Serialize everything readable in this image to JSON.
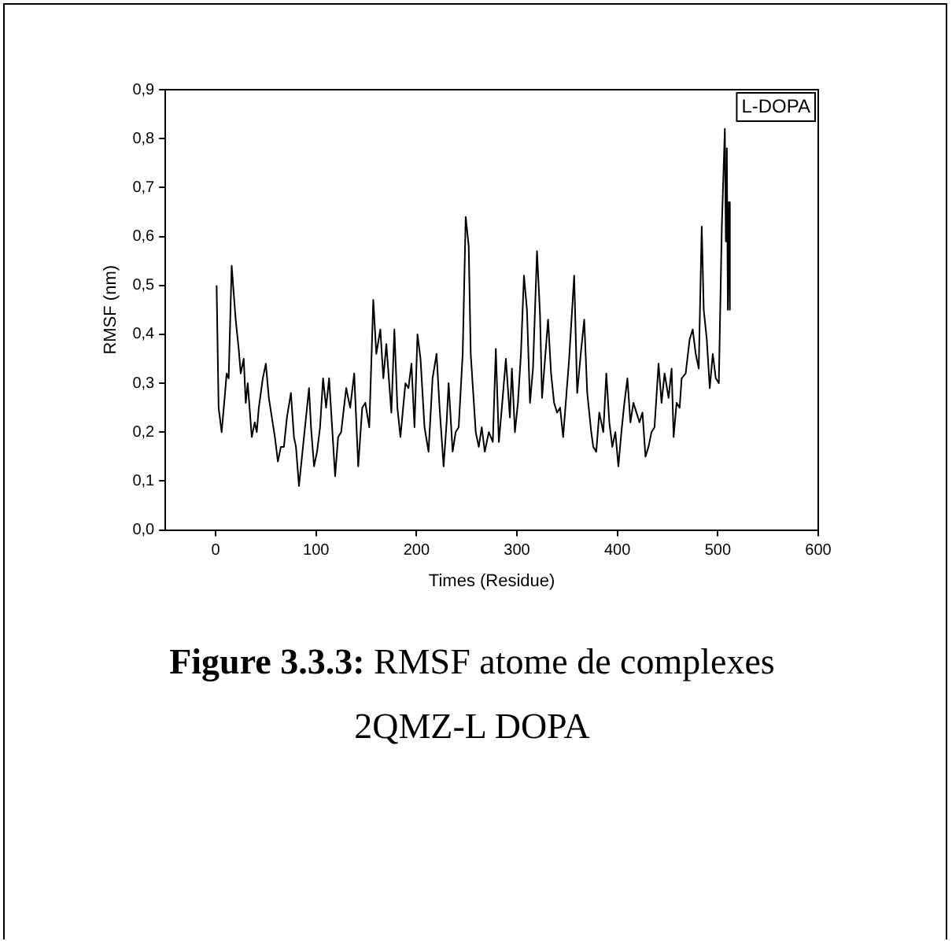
{
  "chart_data": {
    "type": "line",
    "xlabel": "Times (Residue)",
    "ylabel": "RMSF (nm)",
    "xlim": [
      -50,
      600
    ],
    "xticks": [
      0,
      100,
      200,
      300,
      400,
      500,
      600
    ],
    "ylim": [
      0,
      0.9
    ],
    "yticks": [
      {
        "value": 0,
        "label": "0,0"
      },
      {
        "value": 0.1,
        "label": "0,1"
      },
      {
        "value": 0.2,
        "label": "0,2"
      },
      {
        "value": 0.3,
        "label": "0,3"
      },
      {
        "value": 0.4,
        "label": "0,4"
      },
      {
        "value": 0.5,
        "label": "0,5"
      },
      {
        "value": 0.6,
        "label": "0,6"
      },
      {
        "value": 0.7,
        "label": "0,7"
      },
      {
        "value": 0.8,
        "label": "0,8"
      },
      {
        "value": 0.9,
        "label": "0,9"
      }
    ],
    "grid": false,
    "legend": "top right",
    "marker": "none",
    "line_style": "solid",
    "series": [
      {
        "name": "L-DOPA",
        "color": "#000000",
        "x": [
          1,
          3,
          6,
          9,
          11,
          13,
          16,
          20,
          23,
          25,
          28,
          30,
          32,
          36,
          39,
          41,
          43,
          47,
          50,
          53,
          56,
          59,
          62,
          65,
          68,
          71,
          75,
          78,
          80,
          83,
          87,
          90,
          93,
          95,
          98,
          101,
          104,
          107,
          110,
          113,
          116,
          119,
          122,
          125,
          130,
          134,
          138,
          142,
          146,
          149,
          153,
          157,
          160,
          164,
          167,
          170,
          175,
          178,
          181,
          184,
          189,
          192,
          195,
          198,
          201,
          204,
          208,
          212,
          216,
          220,
          223,
          227,
          230,
          232,
          236,
          239,
          242,
          246,
          249,
          252,
          254,
          259,
          262,
          265,
          268,
          272,
          276,
          279,
          282,
          285,
          289,
          293,
          295,
          298,
          301,
          304,
          307,
          310,
          313,
          316,
          320,
          323,
          325,
          328,
          331,
          334,
          337,
          340,
          343,
          346,
          349,
          352,
          357,
          360,
          364,
          367,
          370,
          374,
          376,
          379,
          382,
          386,
          389,
          392,
          395,
          398,
          401,
          404,
          407,
          410,
          413,
          416,
          419,
          422,
          425,
          428,
          431,
          434,
          437,
          441,
          444,
          447,
          451,
          454,
          456,
          459,
          462,
          464,
          468,
          472,
          475,
          478,
          481,
          484,
          486,
          489,
          492,
          495,
          498,
          501,
          504,
          507,
          508,
          509,
          510,
          511,
          512
        ],
        "values": [
          0.5,
          0.25,
          0.2,
          0.27,
          0.32,
          0.31,
          0.54,
          0.43,
          0.37,
          0.32,
          0.35,
          0.26,
          0.3,
          0.19,
          0.22,
          0.2,
          0.25,
          0.31,
          0.34,
          0.27,
          0.23,
          0.19,
          0.14,
          0.17,
          0.17,
          0.23,
          0.28,
          0.19,
          0.17,
          0.09,
          0.17,
          0.23,
          0.29,
          0.21,
          0.13,
          0.16,
          0.21,
          0.31,
          0.25,
          0.31,
          0.21,
          0.11,
          0.19,
          0.2,
          0.29,
          0.25,
          0.32,
          0.13,
          0.25,
          0.26,
          0.21,
          0.47,
          0.36,
          0.41,
          0.31,
          0.38,
          0.24,
          0.41,
          0.25,
          0.19,
          0.3,
          0.29,
          0.34,
          0.21,
          0.4,
          0.35,
          0.21,
          0.16,
          0.31,
          0.36,
          0.25,
          0.13,
          0.22,
          0.3,
          0.16,
          0.2,
          0.21,
          0.36,
          0.64,
          0.58,
          0.36,
          0.2,
          0.17,
          0.21,
          0.16,
          0.2,
          0.18,
          0.37,
          0.18,
          0.25,
          0.35,
          0.23,
          0.33,
          0.2,
          0.26,
          0.36,
          0.52,
          0.45,
          0.26,
          0.33,
          0.57,
          0.44,
          0.27,
          0.35,
          0.43,
          0.32,
          0.26,
          0.24,
          0.25,
          0.19,
          0.27,
          0.35,
          0.52,
          0.28,
          0.37,
          0.43,
          0.28,
          0.2,
          0.17,
          0.16,
          0.24,
          0.2,
          0.32,
          0.22,
          0.17,
          0.2,
          0.13,
          0.2,
          0.26,
          0.31,
          0.22,
          0.26,
          0.24,
          0.22,
          0.24,
          0.15,
          0.17,
          0.2,
          0.21,
          0.34,
          0.26,
          0.32,
          0.27,
          0.33,
          0.19,
          0.26,
          0.25,
          0.31,
          0.32,
          0.39,
          0.41,
          0.36,
          0.33,
          0.62,
          0.45,
          0.39,
          0.29,
          0.36,
          0.31,
          0.3,
          0.62,
          0.82,
          0.59,
          0.78,
          0.45,
          0.67,
          0.45
        ]
      }
    ],
    "annotations": [
      "Figure 3.3.3:",
      "RMSF atome de complexes 2QMZ-L DOPA"
    ]
  }
}
